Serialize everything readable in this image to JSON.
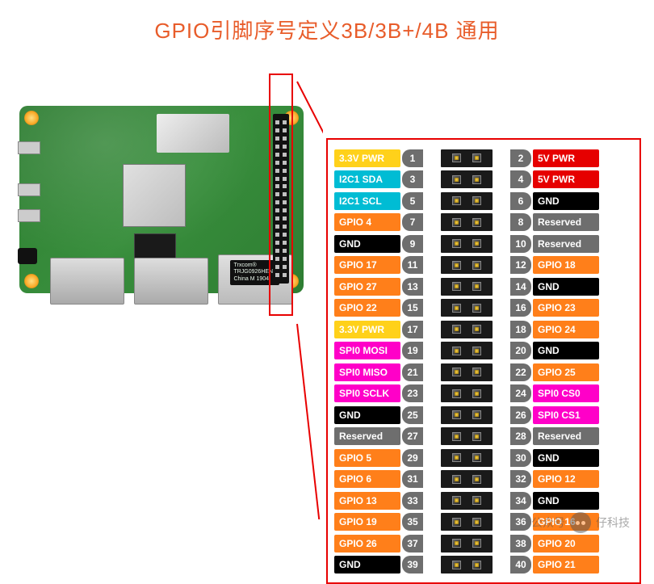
{
  "title": "GPIO引脚序号定义3B/3B+/4B 通用",
  "title_color": "#e85c2a",
  "board": {
    "color": "#2e7d32",
    "trxcom_line1": "Trxcom®",
    "trxcom_line2": "TRJG0926HENL",
    "trxcom_line3": "China M 1904",
    "gpio_header_rows": 20
  },
  "callout_color": "#e80000",
  "colors": {
    "pwr3v3": "#ffd11a",
    "pwr5v": "#e60000",
    "i2c": "#00bcd4",
    "gpio": "#ff7f1a",
    "gnd": "#000000",
    "reserved": "#6e6e6e",
    "spi": "#ff00c8",
    "num": "#6e6e6e",
    "label_text": "#ffffff",
    "reserved_text": "#ffffff"
  },
  "pins_left": [
    {
      "n": 1,
      "label": "3.3V PWR",
      "c": "pwr3v3"
    },
    {
      "n": 3,
      "label": "I2C1 SDA",
      "c": "i2c"
    },
    {
      "n": 5,
      "label": "I2C1 SCL",
      "c": "i2c"
    },
    {
      "n": 7,
      "label": "GPIO 4",
      "c": "gpio"
    },
    {
      "n": 9,
      "label": "GND",
      "c": "gnd"
    },
    {
      "n": 11,
      "label": "GPIO 17",
      "c": "gpio"
    },
    {
      "n": 13,
      "label": "GPIO 27",
      "c": "gpio"
    },
    {
      "n": 15,
      "label": "GPIO 22",
      "c": "gpio"
    },
    {
      "n": 17,
      "label": "3.3V PWR",
      "c": "pwr3v3"
    },
    {
      "n": 19,
      "label": "SPI0 MOSI",
      "c": "spi"
    },
    {
      "n": 21,
      "label": "SPI0 MISO",
      "c": "spi"
    },
    {
      "n": 23,
      "label": "SPI0 SCLK",
      "c": "spi"
    },
    {
      "n": 25,
      "label": "GND",
      "c": "gnd"
    },
    {
      "n": 27,
      "label": "Reserved",
      "c": "reserved"
    },
    {
      "n": 29,
      "label": "GPIO 5",
      "c": "gpio"
    },
    {
      "n": 31,
      "label": "GPIO 6",
      "c": "gpio"
    },
    {
      "n": 33,
      "label": "GPIO 13",
      "c": "gpio"
    },
    {
      "n": 35,
      "label": "GPIO 19",
      "c": "gpio"
    },
    {
      "n": 37,
      "label": "GPIO 26",
      "c": "gpio"
    },
    {
      "n": 39,
      "label": "GND",
      "c": "gnd"
    }
  ],
  "pins_right": [
    {
      "n": 2,
      "label": "5V PWR",
      "c": "pwr5v"
    },
    {
      "n": 4,
      "label": "5V PWR",
      "c": "pwr5v"
    },
    {
      "n": 6,
      "label": "GND",
      "c": "gnd"
    },
    {
      "n": 8,
      "label": "Reserved",
      "c": "reserved"
    },
    {
      "n": 10,
      "label": "Reserved",
      "c": "reserved"
    },
    {
      "n": 12,
      "label": "GPIO 18",
      "c": "gpio"
    },
    {
      "n": 14,
      "label": "GND",
      "c": "gnd"
    },
    {
      "n": 16,
      "label": "GPIO 23",
      "c": "gpio"
    },
    {
      "n": 18,
      "label": "GPIO 24",
      "c": "gpio"
    },
    {
      "n": 20,
      "label": "GND",
      "c": "gnd"
    },
    {
      "n": 22,
      "label": "GPIO 25",
      "c": "gpio"
    },
    {
      "n": 24,
      "label": "SPI0 CS0",
      "c": "spi"
    },
    {
      "n": 26,
      "label": "SPI0 CS1",
      "c": "spi"
    },
    {
      "n": 28,
      "label": "Reserved",
      "c": "reserved"
    },
    {
      "n": 30,
      "label": "GND",
      "c": "gnd"
    },
    {
      "n": 32,
      "label": "GPIO 12",
      "c": "gpio"
    },
    {
      "n": 34,
      "label": "GND",
      "c": "gnd"
    },
    {
      "n": 36,
      "label": "GPIO 16",
      "c": "gpio"
    },
    {
      "n": 38,
      "label": "GPIO 20",
      "c": "gpio"
    },
    {
      "n": 40,
      "label": "GPIO 21",
      "c": "gpio"
    }
  ],
  "watermark": {
    "prefix": "公众号",
    "text": "仔科技"
  }
}
